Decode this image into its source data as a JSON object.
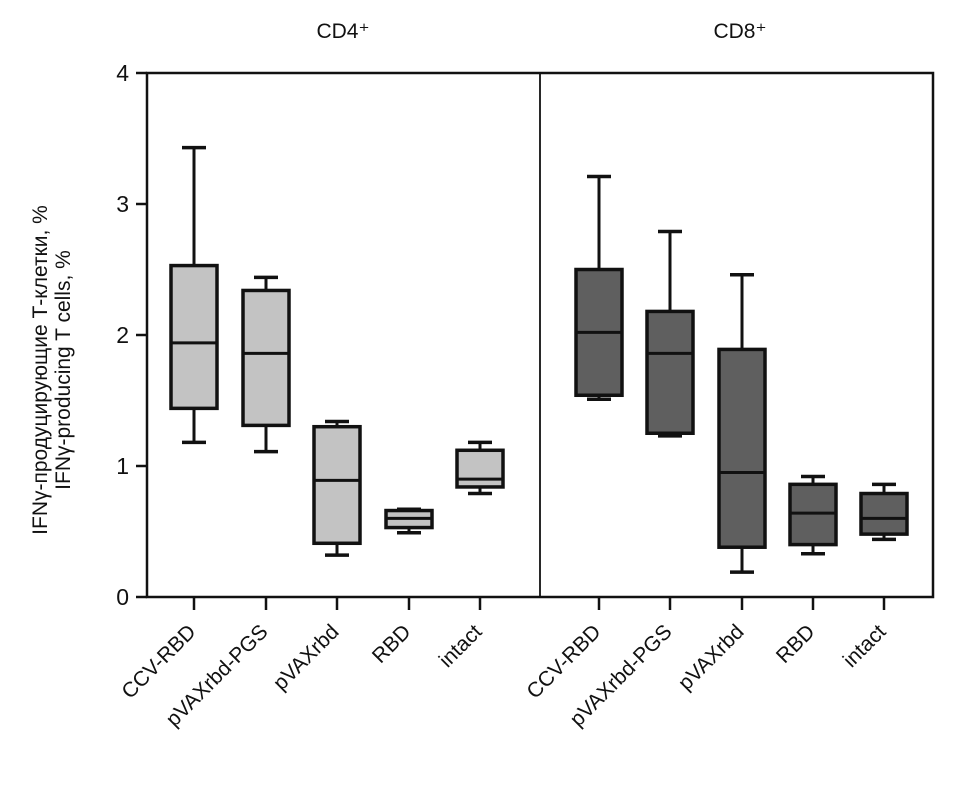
{
  "chart_data": {
    "type": "box",
    "ylabel_lines": [
      "IFNγ-продуцирующие Т-клетки, %",
      "IFNγ-producing T cells, %"
    ],
    "ylim": [
      0,
      4
    ],
    "yticks": [
      "0",
      "1",
      "2",
      "3",
      "4"
    ],
    "grid": false,
    "legend": "none",
    "panels": [
      {
        "title": "CD4⁺",
        "fill_color": "#c3c3c3",
        "categories": [
          "CCV-RBD",
          "pVAXrbd-PGS",
          "pVAXrbd",
          "RBD",
          "intact"
        ],
        "boxes": [
          {
            "min": 1.18,
            "q1": 1.44,
            "median": 1.94,
            "q3": 2.53,
            "max": 3.43
          },
          {
            "min": 1.11,
            "q1": 1.31,
            "median": 1.86,
            "q3": 2.34,
            "max": 2.44
          },
          {
            "min": 0.32,
            "q1": 0.41,
            "median": 0.89,
            "q3": 1.3,
            "max": 1.34
          },
          {
            "min": 0.49,
            "q1": 0.53,
            "median": 0.6,
            "q3": 0.66,
            "max": 0.67
          },
          {
            "min": 0.79,
            "q1": 0.84,
            "median": 0.9,
            "q3": 1.12,
            "max": 1.18
          }
        ]
      },
      {
        "title": "CD8⁺",
        "fill_color": "#5f5f5f",
        "categories": [
          "CCV-RBD",
          "pVAXrbd-PGS",
          "pVAXrbd",
          "RBD",
          "intact"
        ],
        "boxes": [
          {
            "min": 1.51,
            "q1": 1.54,
            "median": 2.02,
            "q3": 2.5,
            "max": 3.21
          },
          {
            "min": 1.23,
            "q1": 1.25,
            "median": 1.86,
            "q3": 2.18,
            "max": 2.79
          },
          {
            "min": 0.19,
            "q1": 0.38,
            "median": 0.95,
            "q3": 1.89,
            "max": 2.46
          },
          {
            "min": 0.33,
            "q1": 0.4,
            "median": 0.64,
            "q3": 0.86,
            "max": 0.92
          },
          {
            "min": 0.44,
            "q1": 0.48,
            "median": 0.6,
            "q3": 0.79,
            "max": 0.86
          }
        ]
      }
    ]
  }
}
